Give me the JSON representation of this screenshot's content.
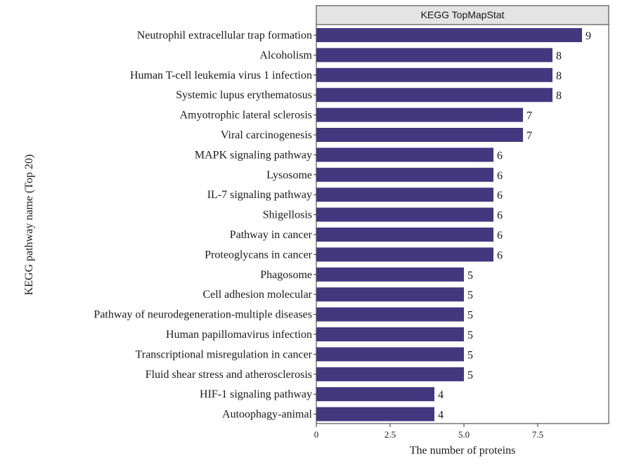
{
  "chart_data": {
    "type": "bar",
    "orientation": "horizontal",
    "title": "KEGG TopMapStat",
    "xlabel": "The number of proteins",
    "ylabel": "KEGG pathway name (Top 20)",
    "categories": [
      "Neutrophil extracellular trap formation",
      "Alcoholism",
      "Human T-cell leukemia virus 1 infection",
      "Systemic lupus erythematosus",
      "Amyotrophic lateral sclerosis",
      "Viral carcinogenesis",
      "MAPK signaling pathway",
      "Lysosome",
      "IL-7 signaling pathway",
      "Shigellosis",
      "Pathway in cancer",
      "Proteoglycans in cancer",
      "Phagosome",
      "Cell adhesion molecular",
      "Pathway of neurodegeneration-multiple diseases",
      "Human papillomavirus infection",
      "Transcriptional misregulation in cancer",
      "Fluid shear stress and atherosclerosis",
      "HIF-1 signaling pathway",
      "Autoophagy-animal"
    ],
    "values": [
      9,
      8,
      8,
      8,
      7,
      7,
      6,
      6,
      6,
      6,
      6,
      6,
      5,
      5,
      5,
      5,
      5,
      5,
      4,
      4
    ],
    "xticks": [
      0,
      2.5,
      5.0,
      7.5
    ],
    "xtick_labels": [
      "0",
      "2.5",
      "5.0",
      "7.5"
    ],
    "xlim": [
      0,
      9.9
    ],
    "bar_color": "#433880",
    "strip_fill": "#e4e4e4",
    "grid": false
  }
}
